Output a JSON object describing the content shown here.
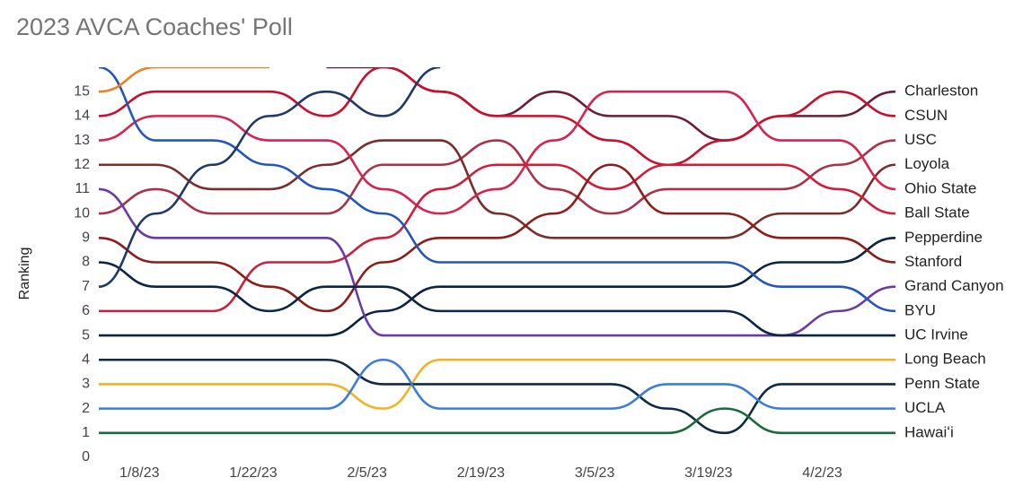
{
  "chart_data": {
    "type": "bump",
    "title": "2023 AVCA Coaches' Poll",
    "y_label": "Ranking",
    "x": [
      "1/3/23",
      "1/10/23",
      "1/17/23",
      "1/24/23",
      "1/31/23",
      "2/7/23",
      "2/14/23",
      "2/21/23",
      "2/28/23",
      "3/7/23",
      "3/14/23",
      "3/21/23",
      "3/28/23",
      "4/4/23",
      "4/11/23"
    ],
    "xticks": [
      "1/8/23",
      "1/22/23",
      "2/5/23",
      "2/19/23",
      "3/5/23",
      "3/19/23",
      "4/2/23"
    ],
    "ylim": [
      0,
      16
    ],
    "yticks": [
      0,
      1,
      2,
      3,
      4,
      5,
      6,
      7,
      8,
      9,
      10,
      11,
      12,
      13,
      14,
      15
    ],
    "grid": false,
    "series": [
      {
        "name": "Charleston",
        "color": "#6b1d3a",
        "values": [
          null,
          null,
          null,
          null,
          16,
          16,
          15,
          14,
          15,
          14,
          14,
          13,
          14,
          14,
          15
        ]
      },
      {
        "name": "CSUN",
        "color": "#c8102e",
        "values": [
          14,
          15,
          15,
          15,
          14,
          16,
          15,
          14,
          14,
          13,
          12,
          13,
          14,
          15,
          14
        ]
      },
      {
        "name": "USC",
        "color": "#a8324a",
        "values": [
          10,
          11,
          10,
          10,
          10,
          12,
          12,
          13,
          11,
          10,
          11,
          11,
          11,
          12,
          13
        ]
      },
      {
        "name": "Loyola",
        "color": "#7a2e2a",
        "values": [
          12,
          12,
          11,
          11,
          12,
          13,
          13,
          10,
          9,
          9,
          9,
          9,
          10,
          10,
          12
        ]
      },
      {
        "name": "Ohio State",
        "color": "#d6244f",
        "values": [
          13,
          14,
          14,
          13,
          13,
          11,
          10,
          11,
          13,
          15,
          15,
          15,
          13,
          13,
          11
        ]
      },
      {
        "name": "Ball State",
        "color": "#cc1f3c",
        "values": [
          6,
          6,
          6,
          8,
          8,
          9,
          11,
          12,
          12,
          11,
          12,
          12,
          12,
          11,
          10
        ]
      },
      {
        "name": "Pepperdine",
        "color": "#0c2340",
        "values": [
          5,
          5,
          5,
          5,
          5,
          6,
          7,
          7,
          7,
          7,
          7,
          7,
          8,
          8,
          9
        ]
      },
      {
        "name": "Stanford",
        "color": "#8c1d18",
        "values": [
          9,
          8,
          8,
          7,
          6,
          8,
          9,
          9,
          10,
          12,
          10,
          10,
          9,
          9,
          8
        ]
      },
      {
        "name": "Grand Canyon",
        "color": "#6a3aa6",
        "values": [
          11,
          9,
          9,
          9,
          9,
          5,
          5,
          5,
          5,
          5,
          5,
          5,
          5,
          6,
          7
        ]
      },
      {
        "name": "BYU",
        "color": "#2457b8",
        "values": [
          16,
          13,
          13,
          12,
          11,
          10,
          8,
          8,
          8,
          8,
          8,
          8,
          7,
          7,
          6
        ]
      },
      {
        "name": "UC Irvine",
        "color": "#0b2545",
        "values": [
          8,
          7,
          7,
          6,
          7,
          7,
          6,
          6,
          6,
          6,
          6,
          6,
          5,
          5,
          5
        ]
      },
      {
        "name": "Long Beach",
        "color": "#f0b323",
        "values": [
          3,
          3,
          3,
          3,
          3,
          2,
          4,
          4,
          4,
          4,
          4,
          4,
          4,
          4,
          4
        ]
      },
      {
        "name": "Penn State",
        "color": "#0f2a47",
        "values": [
          4,
          4,
          4,
          4,
          4,
          3,
          3,
          3,
          3,
          3,
          2,
          1,
          3,
          3,
          3
        ]
      },
      {
        "name": "UCLA",
        "color": "#3b7dd8",
        "values": [
          2,
          2,
          2,
          2,
          2,
          4,
          2,
          2,
          2,
          2,
          3,
          3,
          2,
          2,
          2
        ]
      },
      {
        "name": "Hawaiʻi",
        "color": "#1a6b3a",
        "values": [
          1,
          1,
          1,
          1,
          1,
          1,
          1,
          1,
          1,
          1,
          1,
          2,
          1,
          1,
          1
        ]
      },
      {
        "color": "#f07f1e",
        "values": [
          15,
          16,
          16,
          16,
          null,
          null,
          null,
          null,
          null,
          null,
          null,
          null,
          null,
          null,
          null
        ]
      },
      {
        "color": "#1f3a68",
        "values": [
          7,
          10,
          12,
          14,
          15,
          14,
          16,
          null,
          null,
          null,
          null,
          null,
          null,
          null,
          null
        ]
      }
    ]
  }
}
